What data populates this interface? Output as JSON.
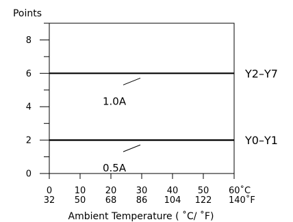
{
  "chart_data": {
    "type": "line",
    "ylabel": "Points",
    "xlabel": "Ambient Temperature ( ˚C/ ˚F)",
    "ylim": [
      0,
      9
    ],
    "xlim": [
      0,
      60
    ],
    "y_ticks": [
      0,
      2,
      4,
      6,
      8
    ],
    "x_ticks": [
      {
        "value": 0,
        "c": "0",
        "f": "32"
      },
      {
        "value": 10,
        "c": "10",
        "f": "50"
      },
      {
        "value": 20,
        "c": "20",
        "f": "68"
      },
      {
        "value": 30,
        "c": "30",
        "f": "86"
      },
      {
        "value": 40,
        "c": "40",
        "f": "104"
      },
      {
        "value": 50,
        "c": "50",
        "f": "122"
      },
      {
        "value": 60,
        "c": "60˚C",
        "f": "140˚F"
      }
    ],
    "grid": false,
    "series": [
      {
        "name": "Y2–Y7",
        "x": [
          0,
          60
        ],
        "values": [
          6,
          6
        ],
        "annotation": "1.0A"
      },
      {
        "name": "Y0–Y1",
        "x": [
          0,
          60
        ],
        "values": [
          2,
          2
        ],
        "annotation": "0.5A"
      }
    ]
  }
}
